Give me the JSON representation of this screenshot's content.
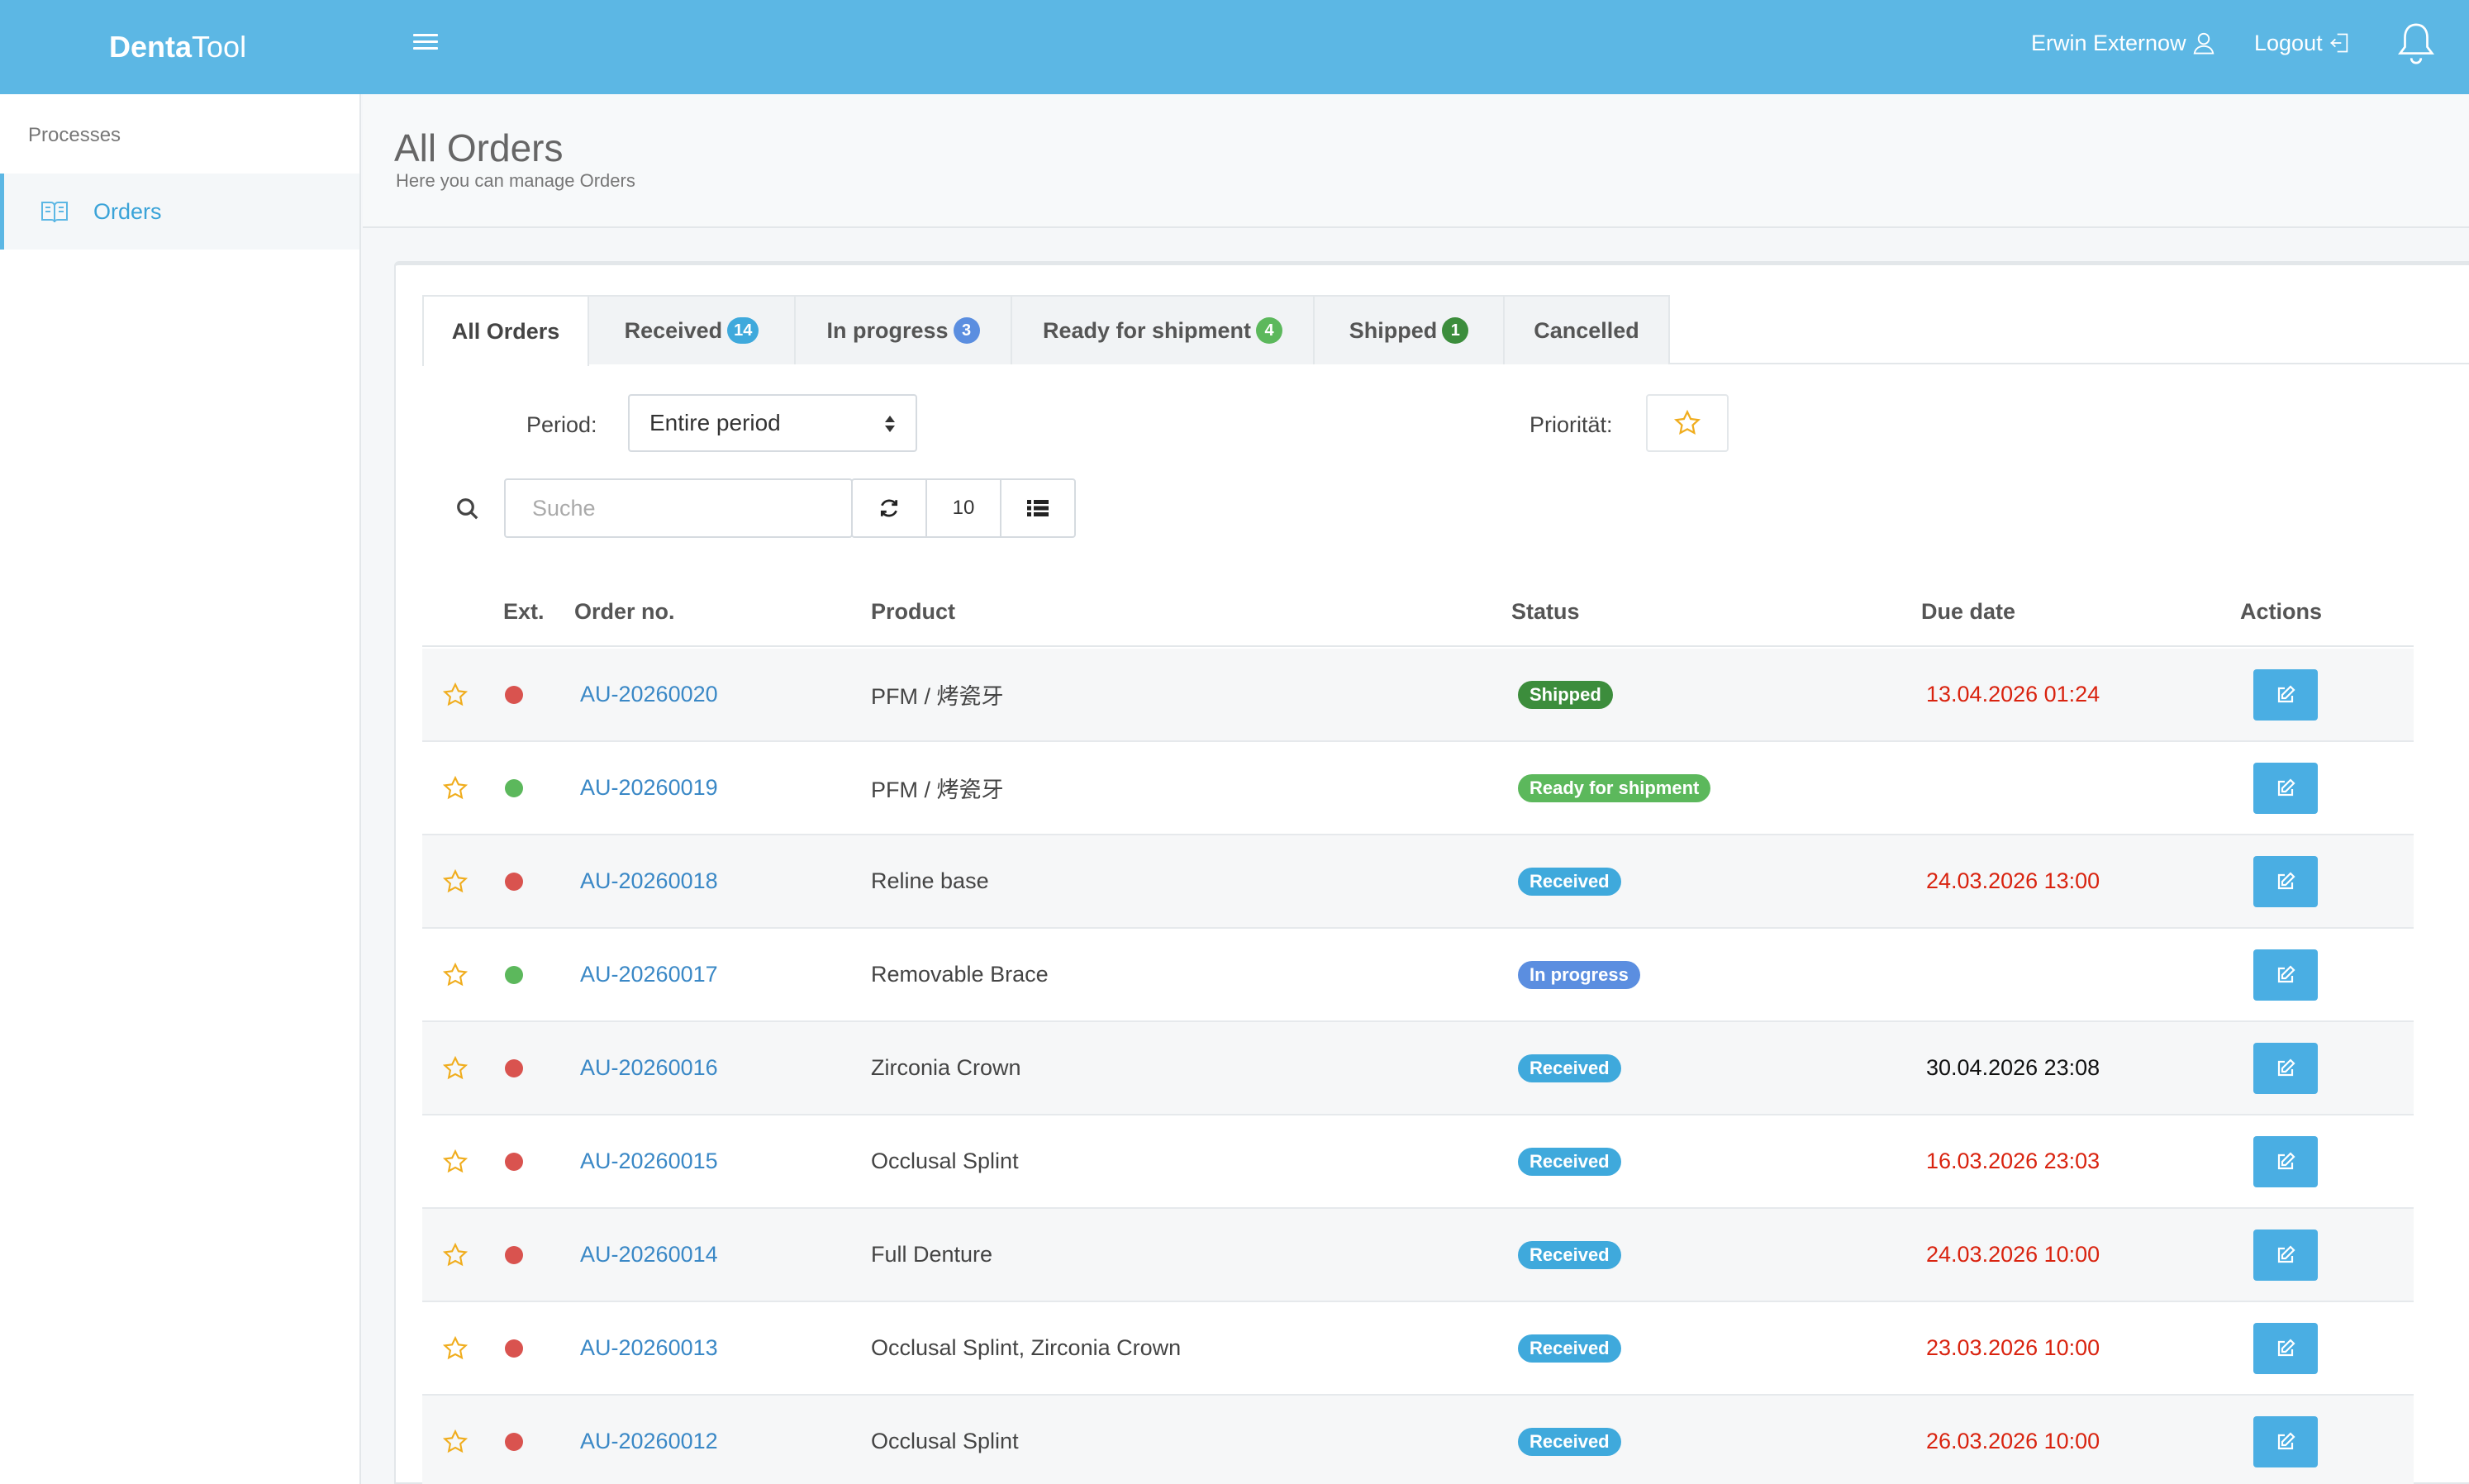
{
  "header": {
    "brand_bold": "Denta",
    "brand_rest": "Tool",
    "user_name": "Erwin Externow",
    "logout_label": "Logout"
  },
  "sidebar": {
    "section_title": "Processes",
    "items": [
      {
        "label": "Orders",
        "icon": "book-icon",
        "active": true
      }
    ]
  },
  "page": {
    "title": "All Orders",
    "subtitle": "Here you can manage Orders"
  },
  "tabs": [
    {
      "label": "All Orders",
      "badge": null,
      "badge_color": null,
      "active": true
    },
    {
      "label": "Received",
      "badge": "14",
      "badge_color": "#3fa9dc",
      "active": false
    },
    {
      "label": "In progress",
      "badge": "3",
      "badge_color": "#5b8ee0",
      "active": false
    },
    {
      "label": "Ready for shipment",
      "badge": "4",
      "badge_color": "#5cb85c",
      "active": false
    },
    {
      "label": "Shipped",
      "badge": "1",
      "badge_color": "#3c8d3c",
      "active": false
    },
    {
      "label": "Cancelled",
      "badge": null,
      "badge_color": null,
      "active": false
    }
  ],
  "filters": {
    "period_label": "Period:",
    "period_value": "Entire period",
    "priority_label": "Priorität:",
    "search_placeholder": "Suche",
    "page_size": "10"
  },
  "table": {
    "columns": {
      "ext": "Ext.",
      "order_no": "Order no.",
      "product": "Product",
      "status": "Status",
      "due_date": "Due date",
      "actions": "Actions"
    },
    "rows": [
      {
        "ext_color": "#d9534f",
        "order_no": "AU-20260020",
        "product": "PFM / 烤瓷牙",
        "status": "Shipped",
        "status_color": "#3c8d3c",
        "due": "13.04.2026 01:24",
        "due_color": "#d9230f"
      },
      {
        "ext_color": "#5cb85c",
        "order_no": "AU-20260019",
        "product": "PFM / 烤瓷牙",
        "status": "Ready for shipment",
        "status_color": "#5cb85c",
        "due": "",
        "due_color": "#d9230f"
      },
      {
        "ext_color": "#d9534f",
        "order_no": "AU-20260018",
        "product": "Reline base",
        "status": "Received",
        "status_color": "#3fa9dc",
        "due": "24.03.2026 13:00",
        "due_color": "#d9230f"
      },
      {
        "ext_color": "#5cb85c",
        "order_no": "AU-20260017",
        "product": "Removable Brace",
        "status": "In progress",
        "status_color": "#5b8ee0",
        "due": "",
        "due_color": "#d9230f"
      },
      {
        "ext_color": "#d9534f",
        "order_no": "AU-20260016",
        "product": "Zirconia Crown",
        "status": "Received",
        "status_color": "#3fa9dc",
        "due": "30.04.2026 23:08",
        "due_color": "#111111"
      },
      {
        "ext_color": "#d9534f",
        "order_no": "AU-20260015",
        "product": "Occlusal Splint",
        "status": "Received",
        "status_color": "#3fa9dc",
        "due": "16.03.2026 23:03",
        "due_color": "#d9230f"
      },
      {
        "ext_color": "#d9534f",
        "order_no": "AU-20260014",
        "product": "Full Denture",
        "status": "Received",
        "status_color": "#3fa9dc",
        "due": "24.03.2026 10:00",
        "due_color": "#d9230f"
      },
      {
        "ext_color": "#d9534f",
        "order_no": "AU-20260013",
        "product": "Occlusal Splint, Zirconia Crown",
        "status": "Received",
        "status_color": "#3fa9dc",
        "due": "23.03.2026 10:00",
        "due_color": "#d9230f"
      },
      {
        "ext_color": "#d9534f",
        "order_no": "AU-20260012",
        "product": "Occlusal Splint",
        "status": "Received",
        "status_color": "#3fa9dc",
        "due": "26.03.2026 10:00",
        "due_color": "#d9230f"
      }
    ]
  },
  "colors": {
    "header_bg": "#5cb7e4",
    "accent": "#3aa3d8",
    "link": "#3a88c6",
    "star": "#f0ad1e",
    "edit_button": "#4aaee3"
  }
}
